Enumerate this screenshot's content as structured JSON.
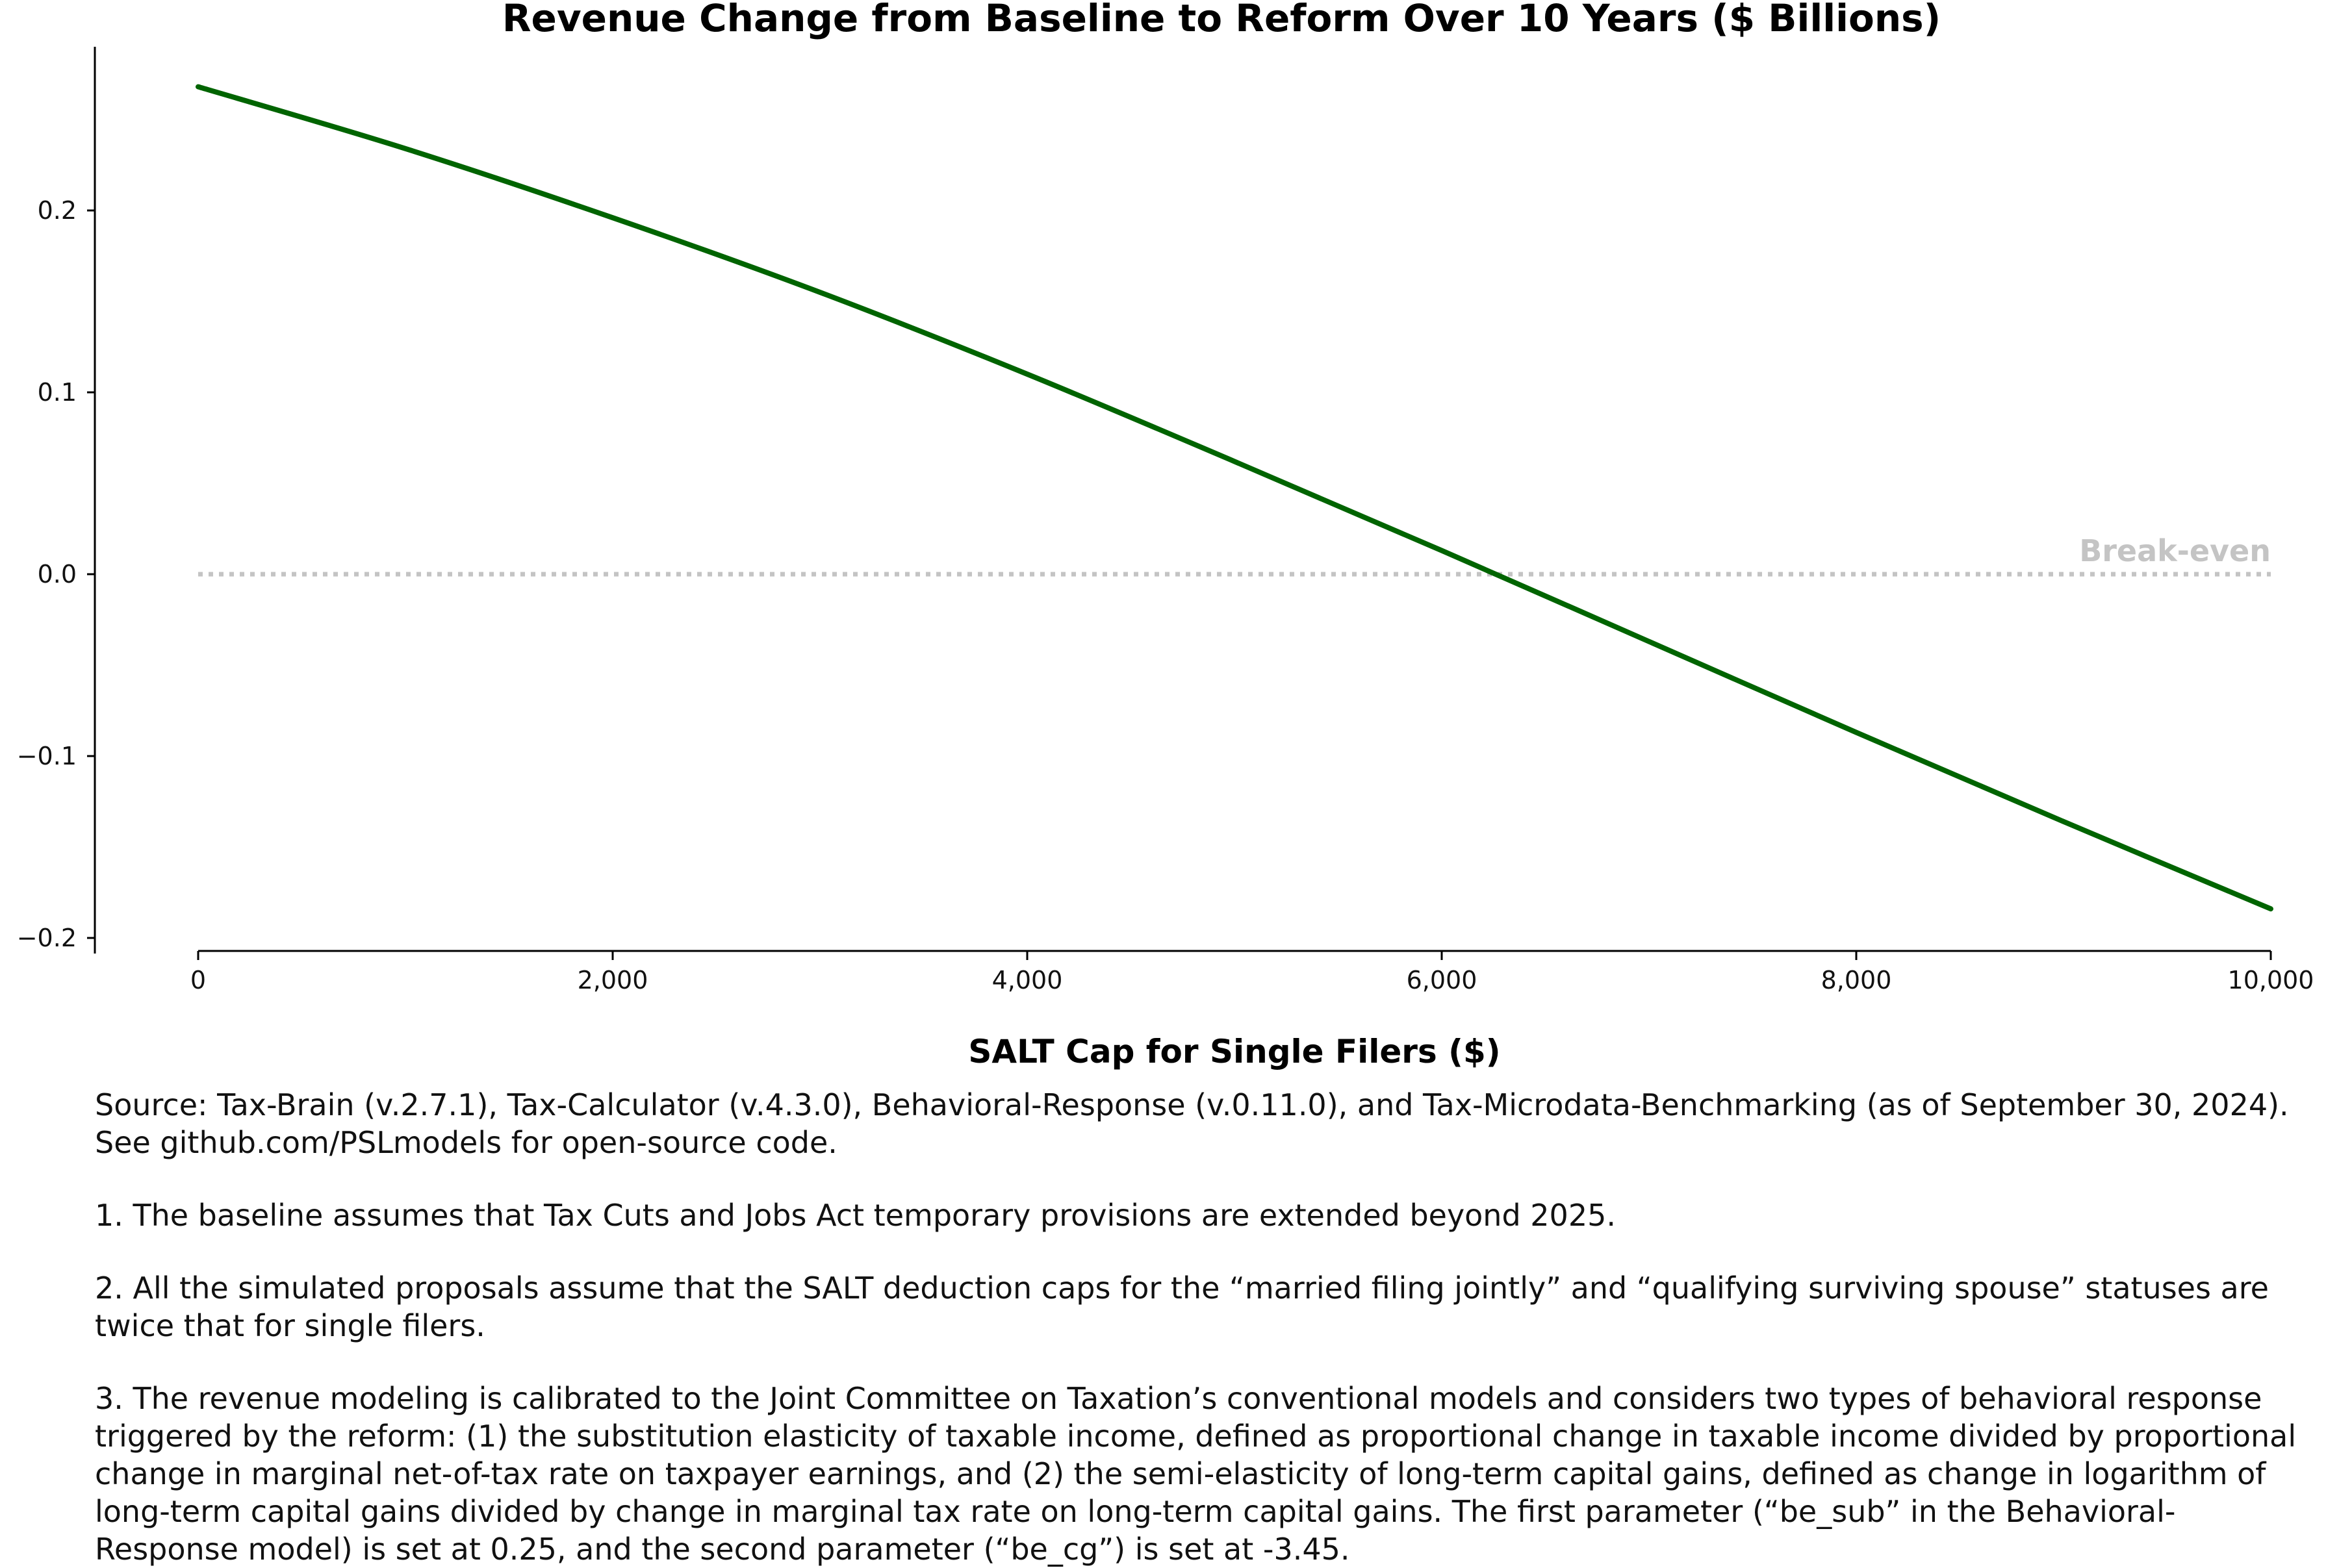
{
  "chart_data": {
    "type": "line",
    "title": "Revenue Change from Baseline to Reform Over 10 Years ($ Billions)",
    "xlabel": "SALT Cap for Single Filers ($)",
    "ylabel": "",
    "xlim": [
      0,
      10000
    ],
    "ylim": [
      -0.2,
      0.27
    ],
    "x_ticks": [
      0,
      2000,
      4000,
      6000,
      8000,
      10000
    ],
    "x_tick_labels": [
      "0",
      "2,000",
      "4,000",
      "6,000",
      "8,000",
      "10,000"
    ],
    "y_ticks": [
      0.2,
      0.1,
      0.0,
      -0.1,
      -0.2
    ],
    "y_tick_labels": [
      "0.2",
      "0.1",
      "0.0",
      "−0.1",
      "−0.2"
    ],
    "grid": false,
    "series": [
      {
        "color": "#006400",
        "x": [
          0,
          1000,
          2000,
          3000,
          4000,
          5000,
          6000,
          7000,
          8000,
          9000,
          10000
        ],
        "values": [
          0.268,
          0.234,
          0.196,
          0.155,
          0.11,
          0.062,
          0.013,
          -0.037,
          -0.087,
          -0.136,
          -0.184
        ]
      }
    ],
    "reference_line": {
      "y": 0.0,
      "label": "Break-even",
      "color": "#c4c4c4",
      "style": "dotted"
    }
  },
  "notes": [
    "Source: Tax-Brain (v.2.7.1), Tax-Calculator (v.4.3.0), Behavioral-Response (v.0.11.0), and Tax-Microdata-Benchmarking (as of September 30, 2024). See github.com/PSLmodels for open-source code.",
    "1. The baseline assumes that Tax Cuts and Jobs Act temporary provisions are extended beyond 2025.",
    "2. All the simulated proposals assume that the SALT deduction caps for the “married filing jointly” and “qualifying surviving spouse” statuses are twice that for single filers.",
    "3. The revenue modeling is calibrated to the Joint Committee on Taxation’s conventional models and considers two types of behavioral response triggered by the reform: (1) the substitution elasticity of taxable income, defined as proportional change in taxable income divided by proportional change in marginal net-of-tax rate on taxpayer earnings, and (2) the semi-elasticity of long-term capital gains, defined as change in logarithm of long-term capital gains divided by change in marginal tax rate on long-term capital gains. The first parameter (“be_sub” in the Behavioral-Response model) is set at 0.25, and the second parameter (“be_cg”) is set at -3.45."
  ]
}
